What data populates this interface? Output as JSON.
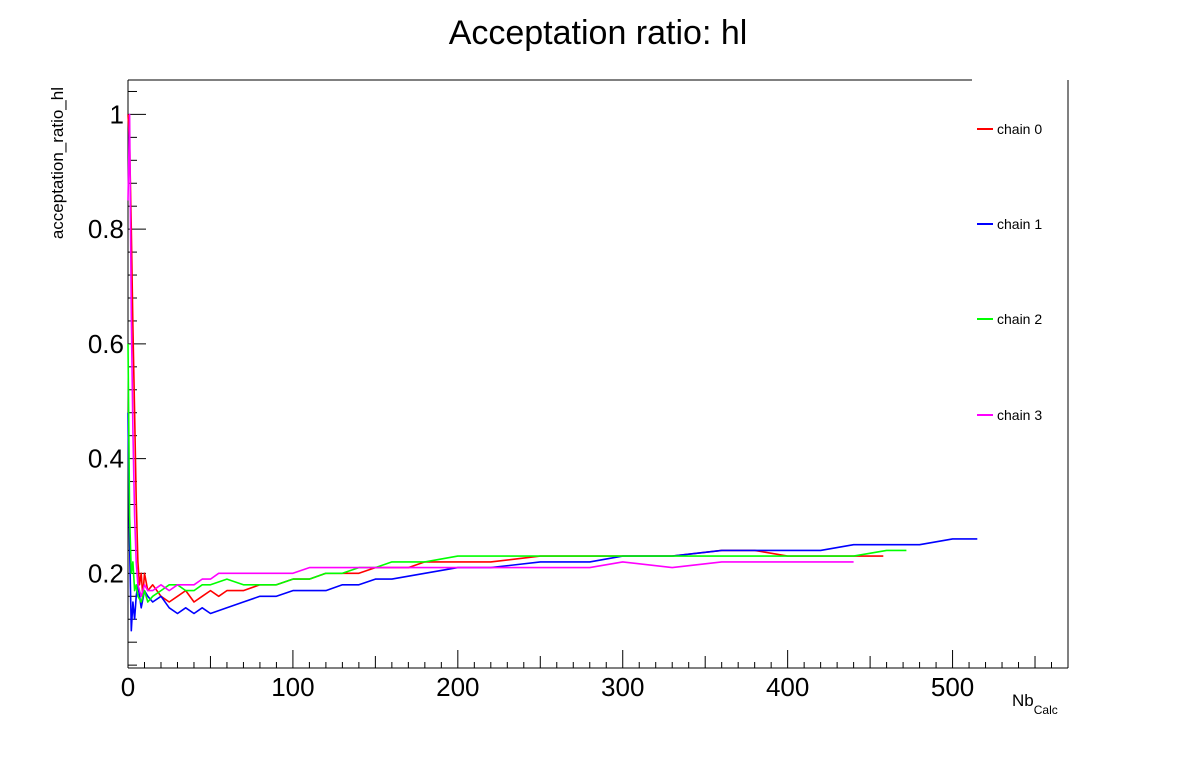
{
  "chart_data": {
    "type": "line",
    "title": "Acceptation ratio: hl",
    "ylabel": "acceptation_ratio_hl",
    "xlabel": "Nb",
    "xlabel_subscript": "Calc",
    "xlim": [
      0,
      570
    ],
    "ylim": [
      0.035,
      1.06
    ],
    "xticks": [
      0,
      100,
      200,
      300,
      400,
      500
    ],
    "xtick_labels": [
      "0",
      "100",
      "200",
      "300",
      "400",
      "500"
    ],
    "yticks": [
      0.2,
      0.4,
      0.6,
      0.8,
      1.0
    ],
    "ytick_labels": [
      "0.2",
      "0.4",
      "0.6",
      "0.8",
      "1"
    ],
    "grid": false,
    "legend_position": "right",
    "series": [
      {
        "name": "chain 0",
        "color": "#ff0000",
        "x": [
          0,
          1,
          2,
          3,
          4,
          5,
          6,
          7,
          8,
          9,
          10,
          12,
          15,
          20,
          25,
          30,
          35,
          40,
          45,
          50,
          55,
          60,
          70,
          80,
          90,
          100,
          110,
          120,
          130,
          140,
          150,
          160,
          170,
          180,
          200,
          220,
          250,
          280,
          300,
          330,
          360,
          380,
          400,
          420,
          440,
          458
        ],
        "y": [
          1.0,
          0.95,
          0.8,
          0.63,
          0.48,
          0.33,
          0.22,
          0.18,
          0.2,
          0.16,
          0.2,
          0.17,
          0.18,
          0.16,
          0.15,
          0.16,
          0.17,
          0.15,
          0.16,
          0.17,
          0.16,
          0.17,
          0.17,
          0.18,
          0.18,
          0.19,
          0.19,
          0.2,
          0.2,
          0.2,
          0.21,
          0.21,
          0.21,
          0.22,
          0.22,
          0.22,
          0.23,
          0.23,
          0.23,
          0.23,
          0.24,
          0.24,
          0.23,
          0.23,
          0.23,
          0.23
        ]
      },
      {
        "name": "chain 1",
        "color": "#0000ff",
        "x": [
          0,
          1,
          2,
          3,
          4,
          5,
          6,
          8,
          10,
          12,
          15,
          20,
          25,
          30,
          35,
          40,
          45,
          50,
          60,
          70,
          80,
          90,
          100,
          110,
          120,
          130,
          140,
          150,
          160,
          180,
          200,
          220,
          250,
          280,
          300,
          330,
          360,
          380,
          400,
          420,
          440,
          460,
          480,
          500,
          515
        ],
        "y": [
          0.48,
          0.25,
          0.1,
          0.15,
          0.12,
          0.16,
          0.18,
          0.14,
          0.17,
          0.16,
          0.15,
          0.16,
          0.14,
          0.13,
          0.14,
          0.13,
          0.14,
          0.13,
          0.14,
          0.15,
          0.16,
          0.16,
          0.17,
          0.17,
          0.17,
          0.18,
          0.18,
          0.19,
          0.19,
          0.2,
          0.21,
          0.21,
          0.22,
          0.22,
          0.23,
          0.23,
          0.24,
          0.24,
          0.24,
          0.24,
          0.25,
          0.25,
          0.25,
          0.26,
          0.26
        ]
      },
      {
        "name": "chain 2",
        "color": "#00ff00",
        "x": [
          0,
          1,
          2,
          3,
          4,
          5,
          6,
          8,
          10,
          12,
          15,
          20,
          25,
          30,
          35,
          40,
          45,
          50,
          60,
          70,
          80,
          90,
          100,
          110,
          120,
          130,
          140,
          150,
          160,
          180,
          200,
          220,
          250,
          280,
          300,
          330,
          360,
          380,
          400,
          420,
          440,
          460,
          472
        ],
        "y": [
          0.6,
          0.3,
          0.2,
          0.22,
          0.17,
          0.18,
          0.16,
          0.15,
          0.17,
          0.15,
          0.16,
          0.17,
          0.18,
          0.18,
          0.17,
          0.17,
          0.18,
          0.18,
          0.19,
          0.18,
          0.18,
          0.18,
          0.19,
          0.19,
          0.2,
          0.2,
          0.21,
          0.21,
          0.22,
          0.22,
          0.23,
          0.23,
          0.23,
          0.23,
          0.23,
          0.23,
          0.23,
          0.23,
          0.23,
          0.23,
          0.23,
          0.24,
          0.24
        ]
      },
      {
        "name": "chain 3",
        "color": "#ff00ff",
        "x": [
          0,
          1,
          2,
          3,
          4,
          5,
          6,
          8,
          10,
          12,
          15,
          20,
          25,
          30,
          35,
          40,
          45,
          50,
          55,
          60,
          70,
          80,
          90,
          100,
          110,
          120,
          130,
          140,
          150,
          160,
          180,
          200,
          220,
          250,
          280,
          300,
          330,
          360,
          380,
          400,
          420,
          440
        ],
        "y": [
          0.85,
          1.0,
          0.65,
          0.45,
          0.3,
          0.22,
          0.18,
          0.16,
          0.18,
          0.17,
          0.17,
          0.18,
          0.17,
          0.18,
          0.18,
          0.18,
          0.19,
          0.19,
          0.2,
          0.2,
          0.2,
          0.2,
          0.2,
          0.2,
          0.21,
          0.21,
          0.21,
          0.21,
          0.21,
          0.21,
          0.21,
          0.21,
          0.21,
          0.21,
          0.21,
          0.22,
          0.21,
          0.22,
          0.22,
          0.22,
          0.22,
          0.22
        ]
      }
    ]
  }
}
